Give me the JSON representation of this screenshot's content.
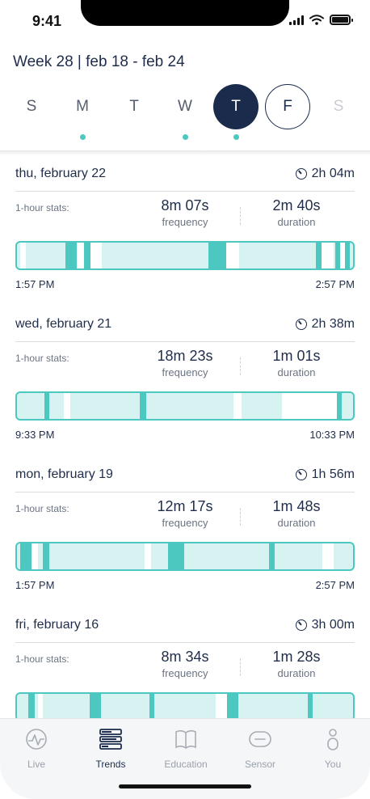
{
  "status": {
    "time": "9:41"
  },
  "week": {
    "title": "Week 28 | feb 18 - feb 24"
  },
  "days": [
    {
      "letter": "S",
      "state": "normal",
      "has_data": false
    },
    {
      "letter": "M",
      "state": "normal",
      "has_data": true
    },
    {
      "letter": "T",
      "state": "normal",
      "has_data": false
    },
    {
      "letter": "W",
      "state": "normal",
      "has_data": true
    },
    {
      "letter": "T",
      "state": "selected",
      "has_data": true
    },
    {
      "letter": "F",
      "state": "today",
      "has_data": false
    },
    {
      "letter": "S",
      "state": "disabled",
      "has_data": false
    }
  ],
  "cards": [
    {
      "date": "thu, february 22",
      "total": "2h 04m",
      "stats_label": "1-hour stats:",
      "frequency": "8m 07s",
      "frequency_label": "frequency",
      "duration": "2m 40s",
      "duration_label": "duration",
      "start": "1:57 PM",
      "end": "2:57 PM"
    },
    {
      "date": "wed, february 21",
      "total": "2h 38m",
      "stats_label": "1-hour stats:",
      "frequency": "18m 23s",
      "frequency_label": "frequency",
      "duration": "1m 01s",
      "duration_label": "duration",
      "start": "9:33 PM",
      "end": "10:33 PM"
    },
    {
      "date": "mon, february 19",
      "total": "1h 56m",
      "stats_label": "1-hour stats:",
      "frequency": "12m 17s",
      "frequency_label": "frequency",
      "duration": "1m 48s",
      "duration_label": "duration",
      "start": "1:57 PM",
      "end": "2:57 PM"
    },
    {
      "date": "fri, february 16",
      "total": "3h 00m",
      "stats_label": "1-hour stats:",
      "frequency": "8m 34s",
      "frequency_label": "frequency",
      "duration": "1m 28s",
      "duration_label": "duration",
      "start": "",
      "end": ""
    }
  ],
  "tabs": [
    {
      "label": "Live",
      "icon": "pulse-icon",
      "active": false
    },
    {
      "label": "Trends",
      "icon": "stack-icon",
      "active": true
    },
    {
      "label": "Education",
      "icon": "book-icon",
      "active": false
    },
    {
      "label": "Sensor",
      "icon": "sensor-icon",
      "active": false
    },
    {
      "label": "You",
      "icon": "person-icon",
      "active": false
    }
  ],
  "colors": {
    "accent": "#4cc8c0",
    "navy": "#1a2b4c",
    "bar_fill": "#d6f3f1"
  }
}
